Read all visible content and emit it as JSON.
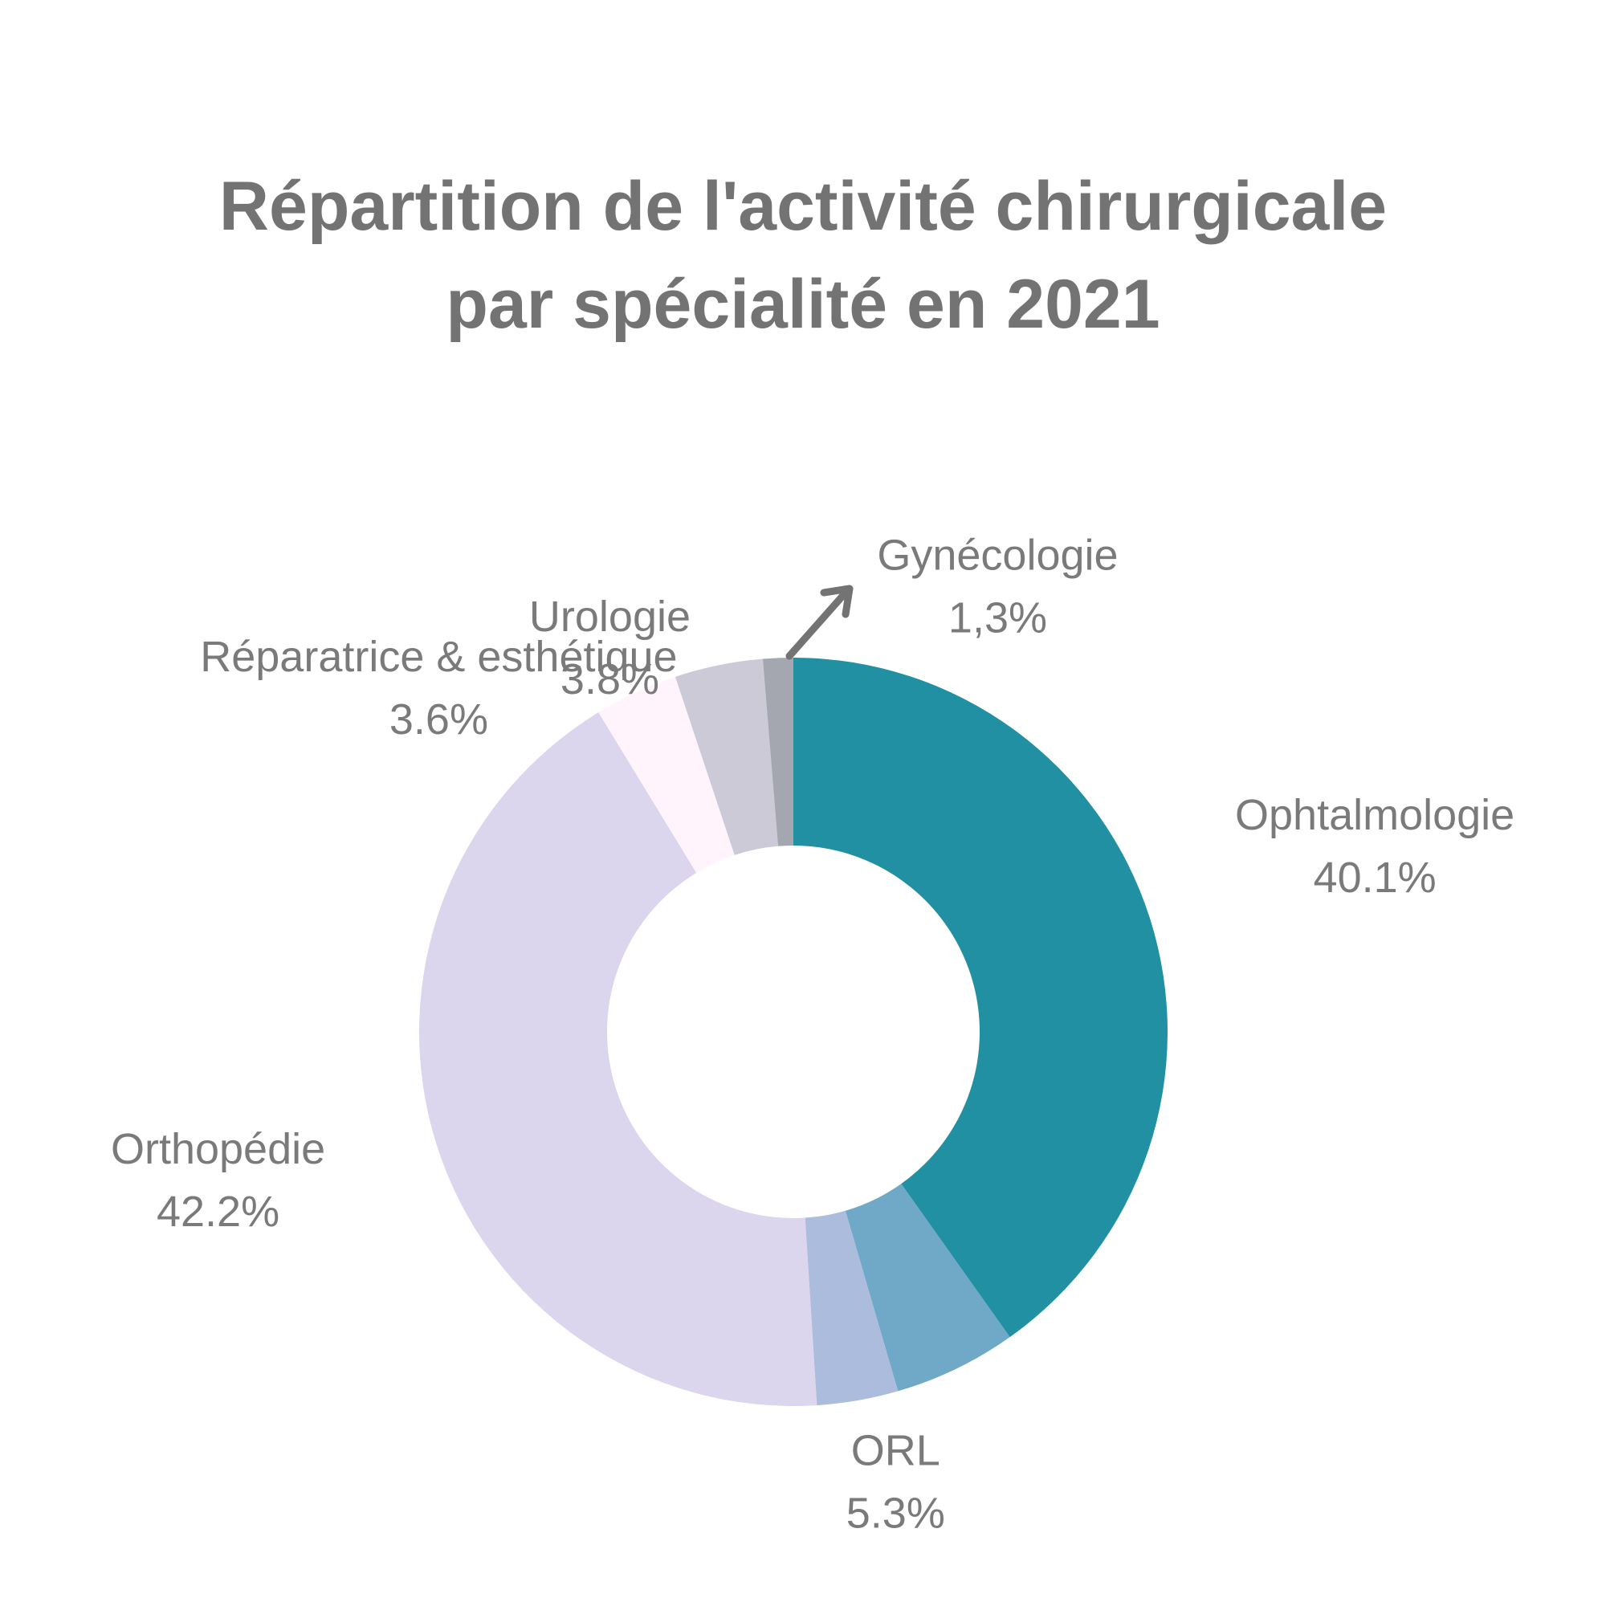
{
  "title": {
    "line1": "Répartition de l'activité chirurgicale",
    "line2": "par spécialité en 2021"
  },
  "chart_data": {
    "type": "pie",
    "donut": true,
    "categories": [
      "Ophtalmologie",
      "ORL",
      "Orthopédie",
      "Réparatrice & esthétique",
      "Urologie",
      "Gynécologie"
    ],
    "values": [
      40.1,
      5.3,
      42.2,
      3.6,
      3.8,
      1.3
    ],
    "value_labels": [
      "40.1%",
      "5.3%",
      "42.2%",
      "3.6%",
      "3.8%",
      "1,3%"
    ],
    "colors": [
      "#2190a2",
      "#70a8c8",
      "#dbd5ed",
      "#fff3fc",
      "#cdcad8",
      "#a4a7b0"
    ],
    "segments": [
      {
        "name": "Ophtalmologie",
        "value": 40.1,
        "label": "40.1%",
        "color": "#2190a2"
      },
      {
        "name": "ORL",
        "value": 5.3,
        "label": "5.3%",
        "color": "#70a8c8"
      },
      {
        "name": "",
        "value": 3.5,
        "label": "",
        "color": "#abbcdc"
      },
      {
        "name": "Orthopédie",
        "value": 42.2,
        "label": "42.2%",
        "color": "#dbd5ed"
      },
      {
        "name": "Réparatrice & esthétique",
        "value": 3.6,
        "label": "3.6%",
        "color": "#fff3fc"
      },
      {
        "name": "Urologie",
        "value": 3.8,
        "label": "3.8%",
        "color": "#cdcad8"
      },
      {
        "name": "Gynécologie",
        "value": 1.3,
        "label": "1,3%",
        "color": "#a4a7b0"
      }
    ],
    "legend": "none",
    "arrow_color": "#737373"
  }
}
